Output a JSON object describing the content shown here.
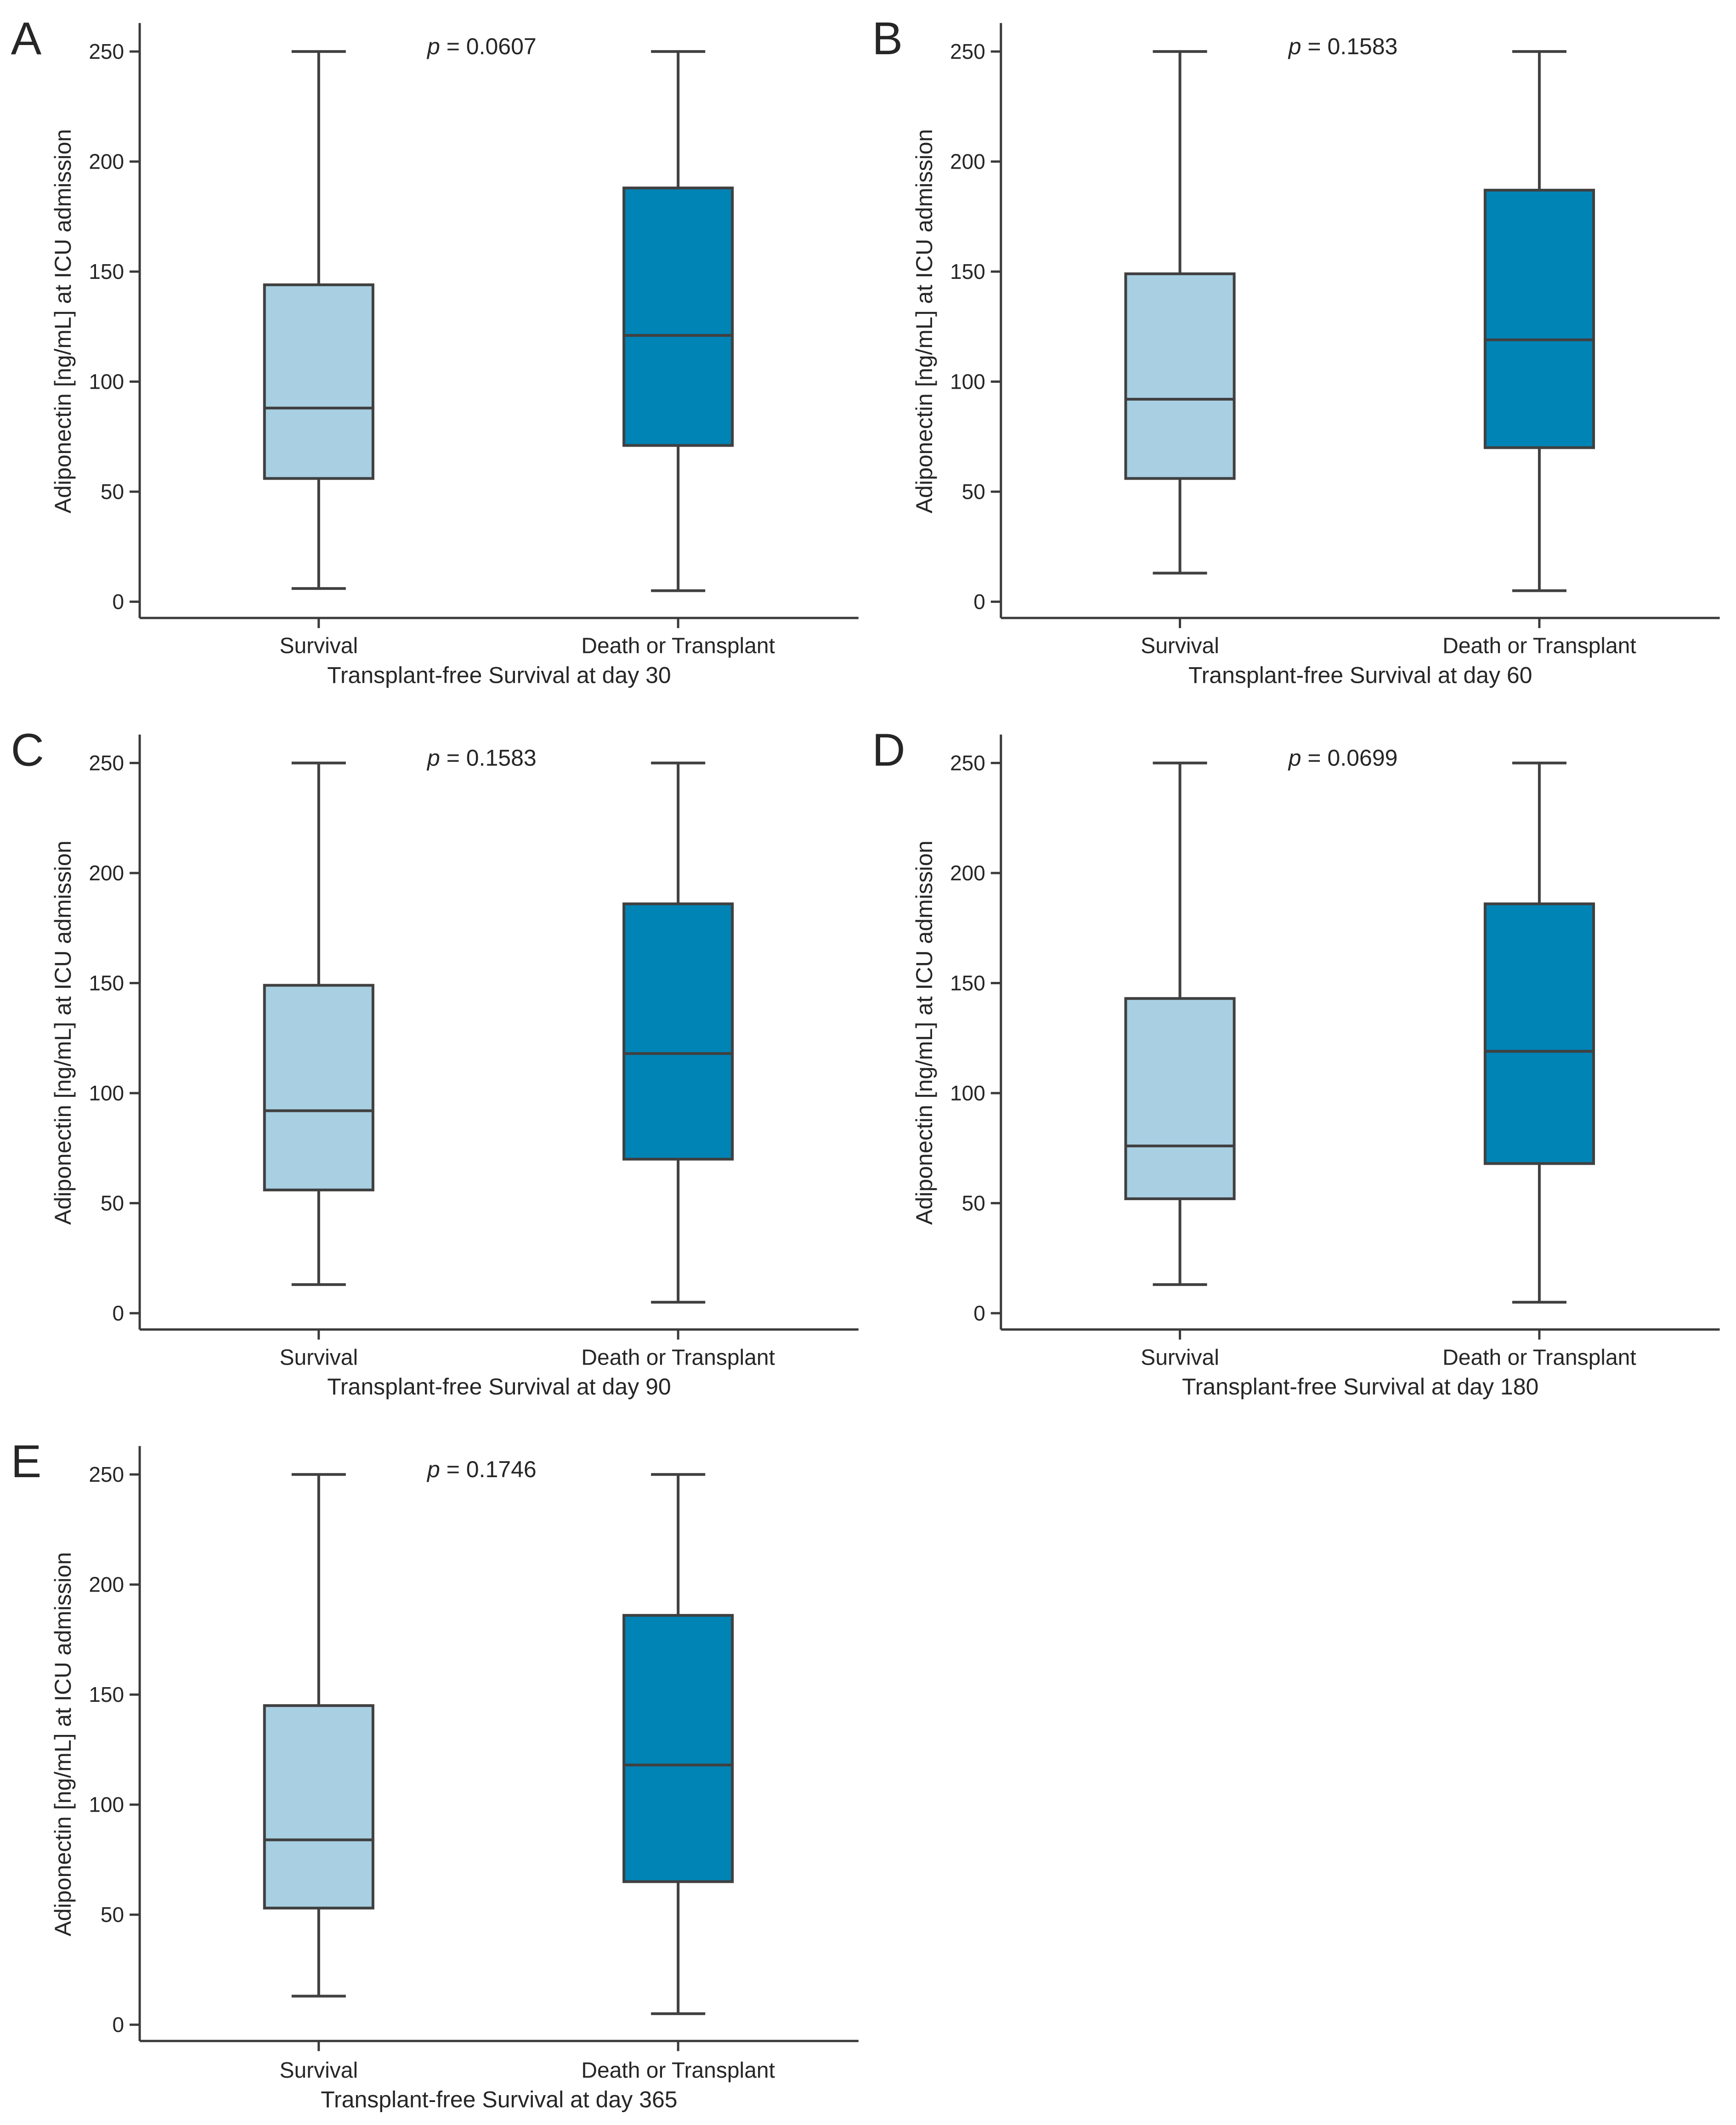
{
  "chart_data": [
    {
      "type": "box",
      "panel_label": "A",
      "p_value": "0.0607",
      "p_symbol": "p",
      "xlabel": "Transplant-free Survival at day 30",
      "ylabel": "Adiponectin [ng/mL] at ICU admission",
      "ylim": [
        0,
        250
      ],
      "yticks": [
        0,
        50,
        100,
        150,
        200,
        250
      ],
      "categories": [
        "Survival",
        "Death or Transplant"
      ],
      "colors": [
        "#a8cfe2",
        "#0083b5"
      ],
      "boxes": [
        {
          "min": 6,
          "q1": 56,
          "median": 88,
          "q3": 144,
          "max": 250
        },
        {
          "min": 5,
          "q1": 71,
          "median": 121,
          "q3": 188,
          "max": 250
        }
      ]
    },
    {
      "type": "box",
      "panel_label": "B",
      "p_value": "0.1583",
      "p_symbol": "p",
      "xlabel": "Transplant-free Survival at day 60",
      "ylabel": "Adiponectin [ng/mL] at ICU admission",
      "ylim": [
        0,
        250
      ],
      "yticks": [
        0,
        50,
        100,
        150,
        200,
        250
      ],
      "categories": [
        "Survival",
        "Death or Transplant"
      ],
      "colors": [
        "#a8cfe2",
        "#0083b5"
      ],
      "boxes": [
        {
          "min": 13,
          "q1": 56,
          "median": 92,
          "q3": 149,
          "max": 250
        },
        {
          "min": 5,
          "q1": 70,
          "median": 119,
          "q3": 187,
          "max": 250
        }
      ]
    },
    {
      "type": "box",
      "panel_label": "C",
      "p_value": "0.1583",
      "p_symbol": "p",
      "xlabel": "Transplant-free Survival at day 90",
      "ylabel": "Adiponectin [ng/mL] at ICU admission",
      "ylim": [
        0,
        250
      ],
      "yticks": [
        0,
        50,
        100,
        150,
        200,
        250
      ],
      "categories": [
        "Survival",
        "Death or Transplant"
      ],
      "colors": [
        "#a8cfe2",
        "#0083b5"
      ],
      "boxes": [
        {
          "min": 13,
          "q1": 56,
          "median": 92,
          "q3": 149,
          "max": 250
        },
        {
          "min": 5,
          "q1": 70,
          "median": 118,
          "q3": 186,
          "max": 250
        }
      ]
    },
    {
      "type": "box",
      "panel_label": "D",
      "p_value": "0.0699",
      "p_symbol": "p",
      "xlabel": "Transplant-free Survival at day 180",
      "ylabel": "Adiponectin [ng/mL] at ICU admission",
      "ylim": [
        0,
        250
      ],
      "yticks": [
        0,
        50,
        100,
        150,
        200,
        250
      ],
      "categories": [
        "Survival",
        "Death or Transplant"
      ],
      "colors": [
        "#a8cfe2",
        "#0083b5"
      ],
      "boxes": [
        {
          "min": 13,
          "q1": 52,
          "median": 76,
          "q3": 143,
          "max": 250
        },
        {
          "min": 5,
          "q1": 68,
          "median": 119,
          "q3": 186,
          "max": 250
        }
      ]
    },
    {
      "type": "box",
      "panel_label": "E",
      "p_value": "0.1746",
      "p_symbol": "p",
      "xlabel": "Transplant-free Survival at day 365",
      "ylabel": "Adiponectin [ng/mL] at ICU admission",
      "ylim": [
        0,
        250
      ],
      "yticks": [
        0,
        50,
        100,
        150,
        200,
        250
      ],
      "categories": [
        "Survival",
        "Death or Transplant"
      ],
      "colors": [
        "#a8cfe2",
        "#0083b5"
      ],
      "boxes": [
        {
          "min": 13,
          "q1": 53,
          "median": 84,
          "q3": 145,
          "max": 250
        },
        {
          "min": 5,
          "q1": 65,
          "median": 118,
          "q3": 186,
          "max": 250
        }
      ]
    }
  ]
}
